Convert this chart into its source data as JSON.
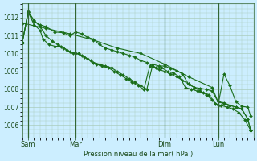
{
  "background_color": "#cceeff",
  "grid_color": "#aaccbb",
  "line_color": "#1a6e1a",
  "marker_color": "#1a6e1a",
  "xlabel_text": "Pression niveau de la mer( hPa )",
  "yticks": [
    1006,
    1007,
    1008,
    1009,
    1010,
    1011,
    1012
  ],
  "ylim": [
    1005.3,
    1012.8
  ],
  "xtick_labels": [
    "Sam",
    "Mar",
    "Dim",
    "Lun"
  ],
  "xtick_positions": [
    2,
    18,
    48,
    66
  ],
  "xlim": [
    0,
    78
  ],
  "vlines": [
    2,
    18,
    48,
    66
  ],
  "series1_x": [
    0,
    2,
    4,
    6,
    8,
    11,
    14,
    16,
    18,
    20,
    22,
    24,
    26,
    28,
    30,
    32,
    34,
    36,
    38,
    40,
    42,
    44,
    46,
    48,
    50,
    52,
    54,
    56,
    58,
    60,
    62,
    64,
    66,
    68,
    70,
    72,
    74,
    76,
    77
  ],
  "series1_y": [
    1010.6,
    1012.3,
    1011.8,
    1011.6,
    1011.5,
    1011.2,
    1011.15,
    1011.0,
    1011.2,
    1011.1,
    1010.9,
    1010.8,
    1010.5,
    1010.3,
    1010.2,
    1010.1,
    1010.0,
    1009.9,
    1009.8,
    1009.6,
    1009.5,
    1009.3,
    1009.1,
    1009.0,
    1008.85,
    1008.7,
    1008.5,
    1008.3,
    1008.1,
    1007.9,
    1007.7,
    1007.4,
    1007.1,
    1008.85,
    1008.2,
    1007.3,
    1007.05,
    1007.0,
    1006.5
  ],
  "series2_x": [
    0,
    2,
    4,
    6,
    8,
    10,
    12,
    14,
    16,
    18,
    20,
    22,
    24,
    26,
    28,
    30,
    32,
    34,
    36,
    38,
    40,
    42,
    44,
    46,
    48,
    50,
    52,
    54,
    56,
    58,
    60,
    62,
    64,
    66,
    68,
    70,
    72,
    74,
    76,
    77
  ],
  "series2_y": [
    1010.6,
    1012.35,
    1011.85,
    1011.5,
    1011.0,
    1010.7,
    1010.5,
    1010.3,
    1010.1,
    1010.0,
    1009.9,
    1009.7,
    1009.5,
    1009.4,
    1009.3,
    1009.2,
    1009.0,
    1008.8,
    1008.6,
    1008.4,
    1008.2,
    1008.0,
    1009.4,
    1009.3,
    1009.3,
    1009.15,
    1009.05,
    1008.85,
    1008.3,
    1008.1,
    1008.05,
    1008.0,
    1007.9,
    1007.3,
    1007.2,
    1007.1,
    1007.0,
    1006.9,
    1006.35,
    1005.7
  ],
  "series3_x": [
    0,
    2,
    4,
    6,
    7,
    9,
    11,
    13,
    15,
    17,
    19,
    21,
    23,
    25,
    27,
    29,
    31,
    33,
    35,
    37,
    39,
    41,
    43,
    45,
    47,
    49,
    51,
    53,
    55,
    57,
    59,
    61,
    63,
    65,
    67,
    69,
    71,
    73,
    75,
    77
  ],
  "series3_y": [
    1010.6,
    1012.3,
    1011.6,
    1011.3,
    1010.8,
    1010.5,
    1010.4,
    1010.4,
    1010.2,
    1010.0,
    1010.0,
    1009.8,
    1009.6,
    1009.4,
    1009.3,
    1009.2,
    1009.0,
    1008.8,
    1008.6,
    1008.4,
    1008.2,
    1008.0,
    1009.3,
    1009.2,
    1009.2,
    1009.0,
    1008.9,
    1008.7,
    1008.1,
    1008.0,
    1007.9,
    1007.8,
    1007.7,
    1007.2,
    1007.1,
    1007.0,
    1006.9,
    1006.7,
    1006.3,
    1005.7
  ],
  "series4_x": [
    0,
    8,
    16,
    24,
    32,
    40,
    48,
    56,
    64,
    66,
    68,
    70,
    72,
    74,
    76,
    77
  ],
  "series4_y": [
    1011.7,
    1011.4,
    1011.1,
    1010.75,
    1010.3,
    1010.0,
    1009.4,
    1008.7,
    1008.1,
    1007.3,
    1007.25,
    1007.1,
    1007.0,
    1006.9,
    1006.35,
    1005.7
  ]
}
